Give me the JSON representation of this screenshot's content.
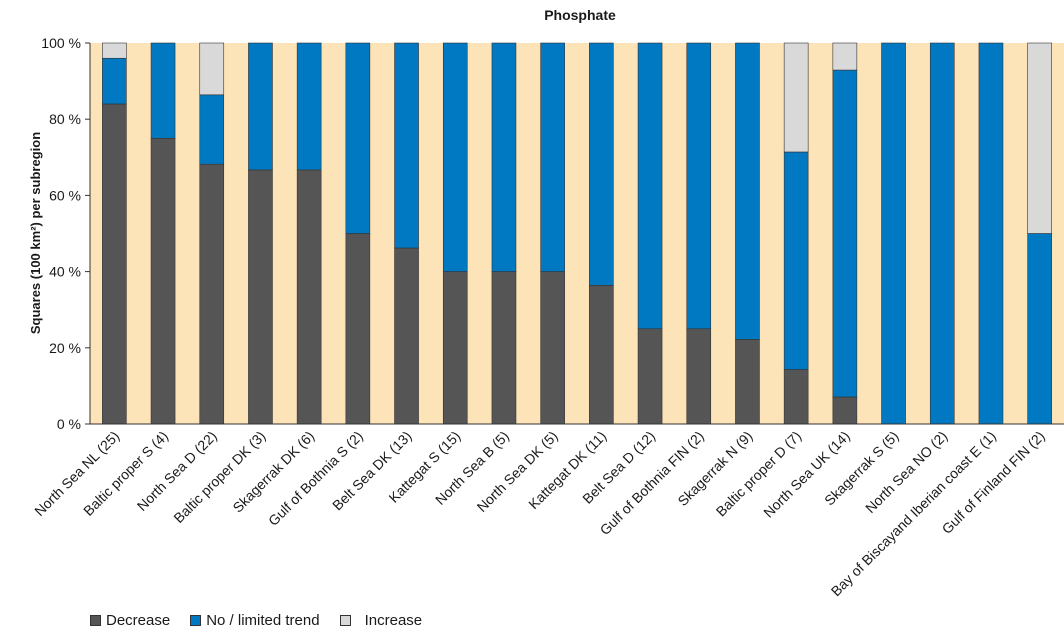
{
  "chart_data": {
    "type": "bar",
    "stacked": true,
    "title": "Phosphate",
    "xlabel": "",
    "ylabel": "Squares (100 km²) per subregion",
    "ylim": [
      0,
      100
    ],
    "y_ticks": [
      "0 %",
      "20 %",
      "40 %",
      "60 %",
      "80 %",
      "100 %"
    ],
    "categories": [
      "North Sea NL (25)",
      "Baltic proper S (4)",
      "North Sea D (22)",
      "Baltic proper DK (3)",
      "Skagerrak DK (6)",
      "Gulf of Bothnia S (2)",
      "Belt Sea DK (13)",
      "Kattegat S (15)",
      "North Sea B (5)",
      "North Sea DK (5)",
      "Kattegat DK (11)",
      "Belt Sea D (12)",
      "Gulf of Bothnia FIN (2)",
      "Skagerrak N (9)",
      "Baltic proper D (7)",
      "North Sea UK (14)",
      "Skagerrak S (5)",
      "North Sea NO (2)",
      "Bay of Biscayand Iberian coast  E (1)",
      "Gulf of Finland FIN (2)"
    ],
    "series": [
      {
        "name": "Decrease",
        "color": "#555555",
        "values": [
          84,
          75,
          68.2,
          66.7,
          66.7,
          50,
          46.2,
          40,
          40,
          40,
          36.4,
          25,
          25,
          22.2,
          14.3,
          7.1,
          0,
          0,
          0,
          0
        ]
      },
      {
        "name": "No / limited trend",
        "color": "#0079c2",
        "values": [
          12,
          25,
          18.2,
          33.3,
          33.3,
          50,
          53.8,
          60,
          60,
          60,
          63.6,
          75,
          75,
          77.8,
          57.1,
          85.8,
          100,
          100,
          100,
          50
        ]
      },
      {
        "name": "Increase",
        "color": "#d9d9d9",
        "values": [
          4,
          0,
          13.6,
          0,
          0,
          0,
          0,
          0,
          0,
          0,
          0,
          0,
          0,
          0,
          28.6,
          7.1,
          0,
          0,
          0,
          50
        ]
      }
    ],
    "plot_background": "#fde3b8",
    "grid": false,
    "legend_position": "bottom-left"
  }
}
